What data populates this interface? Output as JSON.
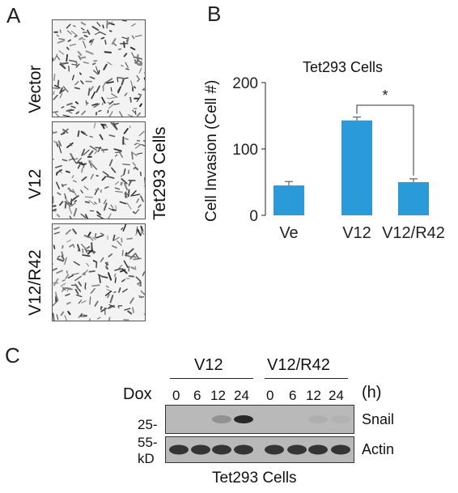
{
  "panels": {
    "a": "A",
    "b": "B",
    "c": "C"
  },
  "panel_a": {
    "images": [
      {
        "label": "Vector"
      },
      {
        "label": "V12"
      },
      {
        "label": "V12/R42"
      }
    ],
    "side_label": "Tet293 Cells"
  },
  "chart_data": {
    "type": "bar",
    "title": "Tet293 Cells",
    "categories": [
      "Ve",
      "V12",
      "V12/R42"
    ],
    "values": [
      45,
      143,
      50
    ],
    "errors": [
      6,
      5,
      5
    ],
    "ylabel": "Cell Invasion (Cell #)",
    "xlabel": "",
    "ylim": [
      0,
      200
    ],
    "yticks": [
      0,
      100,
      200
    ],
    "bar_color": "#2a9bd8",
    "significance": {
      "from": "V12",
      "to": "V12/R42",
      "label": "*"
    }
  },
  "panel_c": {
    "groups": [
      "V12",
      "V12/R42"
    ],
    "dox_label": "Dox",
    "unit_label": "(h)",
    "timepoints": [
      "0",
      "6",
      "12",
      "24",
      "0",
      "6",
      "12",
      "24"
    ],
    "markers": [
      "25-",
      "55-",
      "kD"
    ],
    "bands": [
      "Snail",
      "Actin"
    ],
    "snail_intensity": [
      0.0,
      0.0,
      0.35,
      0.9,
      0.0,
      0.0,
      0.12,
      0.08
    ],
    "actin_intensity": [
      0.85,
      0.85,
      0.85,
      0.85,
      0.85,
      0.85,
      0.85,
      0.85
    ],
    "footer": "Tet293 Cells"
  }
}
